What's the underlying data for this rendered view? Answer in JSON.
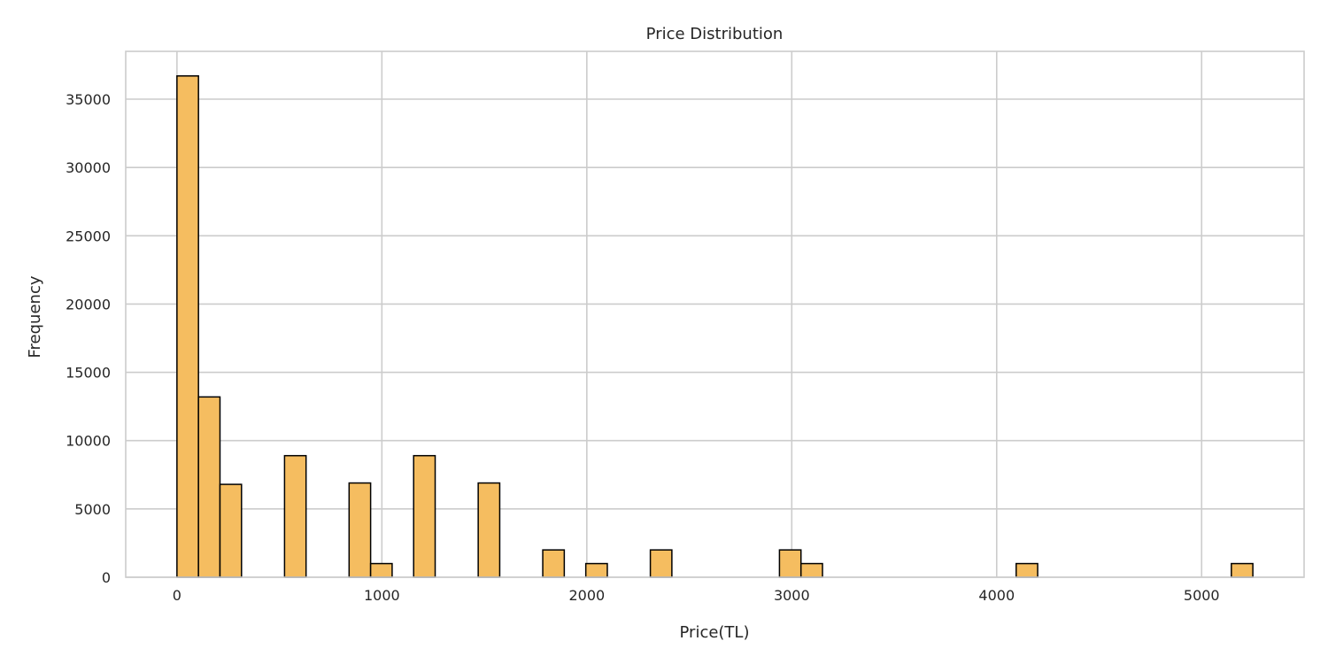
{
  "chart_data": {
    "type": "bar",
    "title": "Price Distribution",
    "xlabel": "Price(TL)",
    "ylabel": "Frequency",
    "xlim": [
      -250,
      5500
    ],
    "ylim": [
      0,
      38500
    ],
    "x_ticks": [
      0,
      1000,
      2000,
      3000,
      4000,
      5000
    ],
    "y_ticks": [
      0,
      5000,
      10000,
      15000,
      20000,
      25000,
      30000,
      35000
    ],
    "grid": true,
    "bin_edges": [
      0,
      105,
      210,
      315,
      420,
      525,
      630,
      735,
      840,
      945,
      1050,
      1155,
      1260,
      1365,
      1470,
      1575,
      1680,
      1785,
      1890,
      1995,
      2100,
      2205,
      2310,
      2415,
      2520,
      2625,
      2730,
      2835,
      2940,
      3045,
      3150,
      3255,
      3360,
      3465,
      3570,
      3675,
      3780,
      3885,
      3990,
      4095,
      4200,
      4305,
      4410,
      4515,
      4620,
      4725,
      4830,
      4935,
      5040,
      5145,
      5250
    ],
    "values": [
      36700,
      13200,
      6800,
      0,
      0,
      8900,
      0,
      0,
      6900,
      1000,
      0,
      8900,
      0,
      0,
      6900,
      0,
      0,
      2000,
      0,
      1000,
      0,
      0,
      2000,
      0,
      0,
      0,
      0,
      0,
      2000,
      1000,
      0,
      0,
      0,
      0,
      0,
      0,
      0,
      0,
      0,
      1000,
      0,
      0,
      0,
      0,
      0,
      0,
      0,
      0,
      0,
      1000
    ],
    "colors": {
      "bar_fill": "#f5bd60",
      "bar_edge": "#000000",
      "grid": "#cccccc",
      "spine": "#cccccc",
      "text": "#262626"
    }
  }
}
